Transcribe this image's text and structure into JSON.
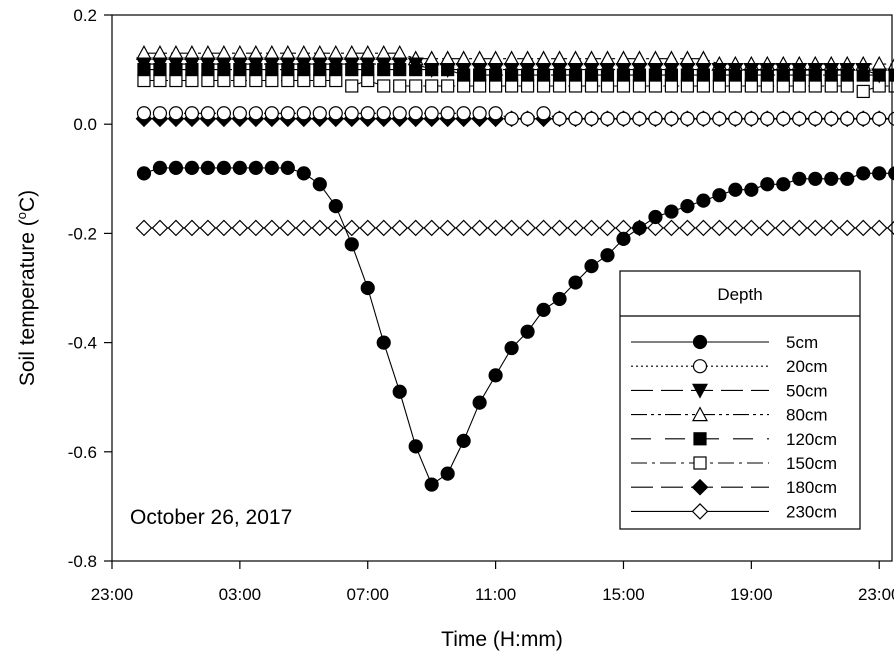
{
  "chart_data": {
    "type": "line",
    "xlabel": "Time (H:mm)",
    "ylabel_main": "Soil temperature (",
    "ylabel_sup": "o",
    "ylabel_end": "C)",
    "annotation": "October 26, 2017",
    "legend_title": "Depth",
    "x_ticks": [
      {
        "label": "23:00",
        "h": -1
      },
      {
        "label": "03:00",
        "h": 3
      },
      {
        "label": "07:00",
        "h": 7
      },
      {
        "label": "11:00",
        "h": 11
      },
      {
        "label": "15:00",
        "h": 15
      },
      {
        "label": "19:00",
        "h": 19
      },
      {
        "label": "23:00",
        "h": 23
      }
    ],
    "y_ticks": [
      {
        "label": "0.2",
        "v": 0.2
      },
      {
        "label": "0.0",
        "v": 0.0
      },
      {
        "label": "-0.2",
        "v": -0.2
      },
      {
        "label": "-0.4",
        "v": -0.4
      },
      {
        "label": "-0.6",
        "v": -0.6
      },
      {
        "label": "-0.8",
        "v": -0.8
      }
    ],
    "xlim_hours": [
      -1,
      23.4
    ],
    "ylim": [
      -0.8,
      0.2
    ],
    "x_start_hour": 0,
    "x_step_hours": 0.5,
    "series": [
      {
        "name": "5cm",
        "marker": "circle-filled",
        "line": "solid",
        "values": [
          -0.09,
          -0.08,
          -0.08,
          -0.08,
          -0.08,
          -0.08,
          -0.08,
          -0.08,
          -0.08,
          -0.08,
          -0.09,
          -0.11,
          -0.15,
          -0.22,
          -0.3,
          -0.4,
          -0.49,
          -0.59,
          -0.66,
          -0.64,
          -0.58,
          -0.51,
          -0.46,
          -0.41,
          -0.38,
          -0.34,
          -0.32,
          -0.29,
          -0.26,
          -0.24,
          -0.21,
          -0.19,
          -0.17,
          -0.16,
          -0.15,
          -0.14,
          -0.13,
          -0.12,
          -0.12,
          -0.11,
          -0.11,
          -0.1,
          -0.1,
          -0.1,
          -0.1,
          -0.09,
          -0.09,
          -0.09
        ]
      },
      {
        "name": "20cm",
        "marker": "circle-open",
        "line": "dotted",
        "values": [
          0.02,
          0.02,
          0.02,
          0.02,
          0.02,
          0.02,
          0.02,
          0.02,
          0.02,
          0.02,
          0.02,
          0.02,
          0.02,
          0.02,
          0.02,
          0.02,
          0.02,
          0.02,
          0.02,
          0.02,
          0.02,
          0.02,
          0.02,
          0.01,
          0.01,
          0.02,
          0.01,
          0.01,
          0.01,
          0.01,
          0.01,
          0.01,
          0.01,
          0.01,
          0.01,
          0.01,
          0.01,
          0.01,
          0.01,
          0.01,
          0.01,
          0.01,
          0.01,
          0.01,
          0.01,
          0.01,
          0.01,
          0.01
        ]
      },
      {
        "name": "50cm",
        "marker": "triangle-down-filled",
        "line": "long-dash",
        "values": [
          0.11,
          0.11,
          0.11,
          0.11,
          0.11,
          0.11,
          0.11,
          0.11,
          0.11,
          0.11,
          0.11,
          0.11,
          0.11,
          0.11,
          0.11,
          0.11,
          0.11,
          0.11,
          0.1,
          0.1,
          0.1,
          0.1,
          0.1,
          0.1,
          0.1,
          0.1,
          0.1,
          0.1,
          0.1,
          0.1,
          0.1,
          0.1,
          0.1,
          0.1,
          0.1,
          0.1,
          0.1,
          0.1,
          0.1,
          0.1,
          0.1,
          0.1,
          0.1,
          0.1,
          0.1,
          0.1,
          0.09,
          0.09
        ]
      },
      {
        "name": "80cm",
        "marker": "triangle-up-open",
        "line": "dash-dot-dot",
        "values": [
          0.13,
          0.13,
          0.13,
          0.13,
          0.13,
          0.13,
          0.13,
          0.13,
          0.13,
          0.13,
          0.13,
          0.13,
          0.13,
          0.13,
          0.13,
          0.13,
          0.13,
          0.12,
          0.12,
          0.12,
          0.12,
          0.12,
          0.12,
          0.12,
          0.12,
          0.12,
          0.12,
          0.12,
          0.12,
          0.12,
          0.12,
          0.12,
          0.12,
          0.12,
          0.12,
          0.12,
          0.11,
          0.11,
          0.11,
          0.11,
          0.11,
          0.11,
          0.11,
          0.11,
          0.11,
          0.11,
          0.11,
          0.11
        ]
      },
      {
        "name": "120cm",
        "marker": "square-filled",
        "line": "long-dash-gap",
        "values": [
          0.1,
          0.1,
          0.1,
          0.1,
          0.1,
          0.1,
          0.1,
          0.1,
          0.1,
          0.1,
          0.1,
          0.1,
          0.1,
          0.1,
          0.1,
          0.1,
          0.1,
          0.1,
          0.1,
          0.1,
          0.09,
          0.09,
          0.09,
          0.09,
          0.09,
          0.09,
          0.09,
          0.09,
          0.09,
          0.09,
          0.09,
          0.09,
          0.09,
          0.09,
          0.09,
          0.09,
          0.09,
          0.09,
          0.09,
          0.09,
          0.09,
          0.09,
          0.09,
          0.09,
          0.09,
          0.09,
          0.09,
          0.09
        ]
      },
      {
        "name": "150cm",
        "marker": "square-open",
        "line": "dash-dot",
        "values": [
          0.08,
          0.08,
          0.08,
          0.08,
          0.08,
          0.08,
          0.08,
          0.08,
          0.08,
          0.08,
          0.08,
          0.08,
          0.08,
          0.07,
          0.08,
          0.07,
          0.07,
          0.07,
          0.07,
          0.07,
          0.07,
          0.07,
          0.07,
          0.07,
          0.07,
          0.07,
          0.07,
          0.07,
          0.07,
          0.07,
          0.07,
          0.07,
          0.07,
          0.07,
          0.07,
          0.07,
          0.07,
          0.07,
          0.07,
          0.07,
          0.07,
          0.07,
          0.07,
          0.07,
          0.07,
          0.06,
          0.07,
          0.07
        ]
      },
      {
        "name": "180cm",
        "marker": "diamond-filled",
        "line": "long-dash",
        "values": [
          0.01,
          0.01,
          0.01,
          0.01,
          0.01,
          0.01,
          0.01,
          0.01,
          0.01,
          0.01,
          0.01,
          0.01,
          0.01,
          0.01,
          0.01,
          0.01,
          0.01,
          0.01,
          0.01,
          0.01,
          0.01,
          0.01,
          0.01,
          0.01,
          0.01,
          0.01,
          0.01,
          0.01,
          0.01,
          0.01,
          0.01,
          0.01,
          0.01,
          0.01,
          0.01,
          0.01,
          0.01,
          0.01,
          0.01,
          0.01,
          0.01,
          0.01,
          0.01,
          0.01,
          0.01,
          0.01,
          0.01,
          0.01
        ]
      },
      {
        "name": "230cm",
        "marker": "diamond-open",
        "line": "solid",
        "values": [
          -0.19,
          -0.19,
          -0.19,
          -0.19,
          -0.19,
          -0.19,
          -0.19,
          -0.19,
          -0.19,
          -0.19,
          -0.19,
          -0.19,
          -0.19,
          -0.19,
          -0.19,
          -0.19,
          -0.19,
          -0.19,
          -0.19,
          -0.19,
          -0.19,
          -0.19,
          -0.19,
          -0.19,
          -0.19,
          -0.19,
          -0.19,
          -0.19,
          -0.19,
          -0.19,
          -0.19,
          -0.19,
          -0.19,
          -0.19,
          -0.19,
          -0.19,
          -0.19,
          -0.19,
          -0.19,
          -0.19,
          -0.19,
          -0.19,
          -0.19,
          -0.19,
          -0.19,
          -0.19,
          -0.19,
          -0.19
        ]
      }
    ]
  }
}
